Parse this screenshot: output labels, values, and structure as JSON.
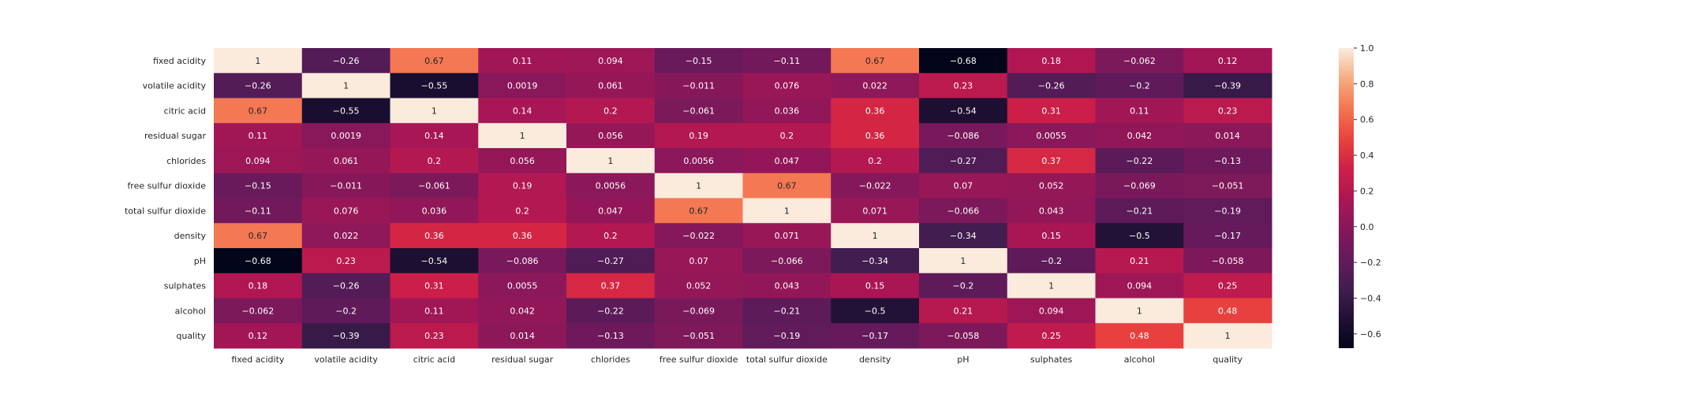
{
  "chart_data": {
    "type": "heatmap",
    "title": "",
    "xlabel": "",
    "ylabel": "",
    "rows": [
      "fixed acidity",
      "volatile acidity",
      "citric acid",
      "residual sugar",
      "chlorides",
      "free sulfur dioxide",
      "total sulfur dioxide",
      "density",
      "pH",
      "sulphates",
      "alcohol",
      "quality"
    ],
    "columns": [
      "fixed acidity",
      "volatile acidity",
      "citric acid",
      "residual sugar",
      "chlorides",
      "free sulfur dioxide",
      "total sulfur dioxide",
      "density",
      "pH",
      "sulphates",
      "alcohol",
      "quality"
    ],
    "values": [
      [
        1,
        -0.26,
        0.67,
        0.11,
        0.094,
        -0.15,
        -0.11,
        0.67,
        -0.68,
        0.18,
        -0.062,
        0.12
      ],
      [
        -0.26,
        1,
        -0.55,
        0.0019,
        0.061,
        -0.011,
        0.076,
        0.022,
        0.23,
        -0.26,
        -0.2,
        -0.39
      ],
      [
        0.67,
        -0.55,
        1,
        0.14,
        0.2,
        -0.061,
        0.036,
        0.36,
        -0.54,
        0.31,
        0.11,
        0.23
      ],
      [
        0.11,
        0.0019,
        0.14,
        1,
        0.056,
        0.19,
        0.2,
        0.36,
        -0.086,
        0.0055,
        0.042,
        0.014
      ],
      [
        0.094,
        0.061,
        0.2,
        0.056,
        1,
        0.0056,
        0.047,
        0.2,
        -0.27,
        0.37,
        -0.22,
        -0.13
      ],
      [
        -0.15,
        -0.011,
        -0.061,
        0.19,
        0.0056,
        1,
        0.67,
        -0.022,
        0.07,
        0.052,
        -0.069,
        -0.051
      ],
      [
        -0.11,
        0.076,
        0.036,
        0.2,
        0.047,
        0.67,
        1,
        0.071,
        -0.066,
        0.043,
        -0.21,
        -0.19
      ],
      [
        0.67,
        0.022,
        0.36,
        0.36,
        0.2,
        -0.022,
        0.071,
        1,
        -0.34,
        0.15,
        -0.5,
        -0.17
      ],
      [
        -0.68,
        0.23,
        -0.54,
        -0.086,
        -0.27,
        0.07,
        -0.066,
        -0.34,
        1,
        -0.2,
        0.21,
        -0.058
      ],
      [
        0.18,
        -0.26,
        0.31,
        0.0055,
        0.37,
        0.052,
        0.043,
        0.15,
        -0.2,
        1,
        0.094,
        0.25
      ],
      [
        -0.062,
        -0.2,
        0.11,
        0.042,
        -0.22,
        -0.069,
        -0.21,
        -0.5,
        0.21,
        0.094,
        1,
        0.48
      ],
      [
        0.12,
        -0.39,
        0.23,
        0.014,
        -0.13,
        -0.051,
        -0.19,
        -0.17,
        -0.058,
        0.25,
        0.48,
        1
      ]
    ],
    "colorbar": {
      "min": -0.68,
      "max": 1.0,
      "ticks": [
        1.0,
        0.8,
        0.6,
        0.4,
        0.2,
        0.0,
        -0.2,
        -0.4,
        -0.6
      ],
      "tick_labels": [
        "1.0",
        "0.8",
        "0.6",
        "0.4",
        "0.2",
        "0.0",
        "−0.2",
        "−0.4",
        "−0.6"
      ]
    },
    "colormap": "rocket",
    "grid": false
  }
}
